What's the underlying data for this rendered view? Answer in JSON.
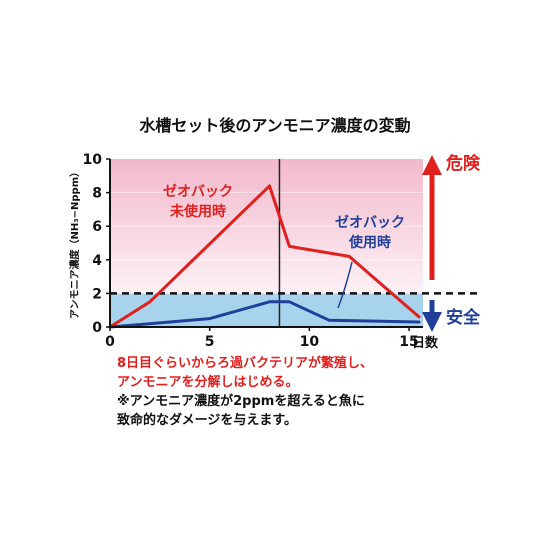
{
  "chart_data": {
    "type": "line",
    "title": "水槽セット後のアンモニア濃度の変動",
    "ylabel": "アンモニア濃度（NH₃−Nppm）",
    "x_unit": "日数",
    "xlim": [
      0,
      15.7
    ],
    "ylim": [
      0,
      10
    ],
    "x_ticks": [
      0,
      5,
      10,
      15
    ],
    "y_ticks": [
      0,
      2,
      4,
      6,
      8,
      10
    ],
    "series": [
      {
        "name": "ゼオバック未使用時",
        "color": "#e0201e",
        "x": [
          0,
          2,
          8,
          9,
          12,
          15.5
        ],
        "y": [
          0,
          1.5,
          8.4,
          4.8,
          4.2,
          0.6
        ]
      },
      {
        "name": "ゼオバック使用時",
        "color": "#1f3f9a",
        "x": [
          0,
          3,
          5,
          8,
          9,
          11,
          15.5
        ],
        "y": [
          0,
          0.3,
          0.5,
          1.5,
          1.5,
          0.4,
          0.3
        ]
      }
    ],
    "threshold": {
      "value": 2
    },
    "marker_day": 8.5,
    "danger_label": "危険",
    "safe_label": "安全",
    "colors": {
      "danger": "#e0201e",
      "safe": "#1f3f9a",
      "danger_zone_top": "#f2b8cc",
      "danger_zone_bottom": "#fdf1f5",
      "safe_zone": "#a7d4ec"
    }
  },
  "notes": [
    "8日目ぐらいからろ過バクテリアが繁殖し、",
    "アンモニアを分解しはじめる。",
    "※アンモニア濃度が2ppmを超えると魚に",
    "致命的なダメージを与えます。"
  ]
}
